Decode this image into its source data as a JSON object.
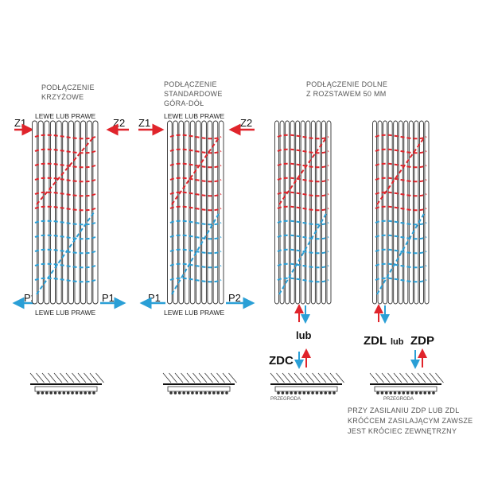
{
  "colors": {
    "supply": "#e0242b",
    "return": "#2a9fd6",
    "frame": "#333333"
  },
  "sections": [
    {
      "title_lines": [
        "PODŁĄCZENIE",
        "KRZYŻOWE"
      ],
      "top_label": "LEWE LUB PRAWE",
      "bottom_label": "LEWE LUB PRAWE",
      "z_left": "Z1",
      "z_right": "Z2",
      "p_left": "P2",
      "p_right": "P1"
    },
    {
      "title_lines": [
        "PODŁĄCZENIE",
        "STANDARDOWE",
        "GÓRA-DÓŁ"
      ],
      "top_label": "LEWE LUB PRAWE",
      "bottom_label": "LEWE LUB PRAWE",
      "z_left": "Z1",
      "z_right": "Z2",
      "p_left": "P1",
      "p_right": "P2"
    },
    {
      "title_lines": [
        "PODŁĄCZENIE DOLNE",
        "Z ROZSTAWEM  50 MM"
      ],
      "or_label": "lub",
      "code": "ZDC",
      "partition_label": "PRZEGRODA"
    },
    {
      "code_left": "ZDL",
      "or_label": "lub",
      "code_right": "ZDP",
      "partition_label": "PRZEGRODA",
      "note_lines": [
        "PRZY ZASILANIU ZDP LUB ZDL",
        "KRÓĆCEM ZASILAJĄCYM ZAWSZE",
        "JEST KRÓCIEC ZEWNĘTRZNY"
      ]
    }
  ]
}
